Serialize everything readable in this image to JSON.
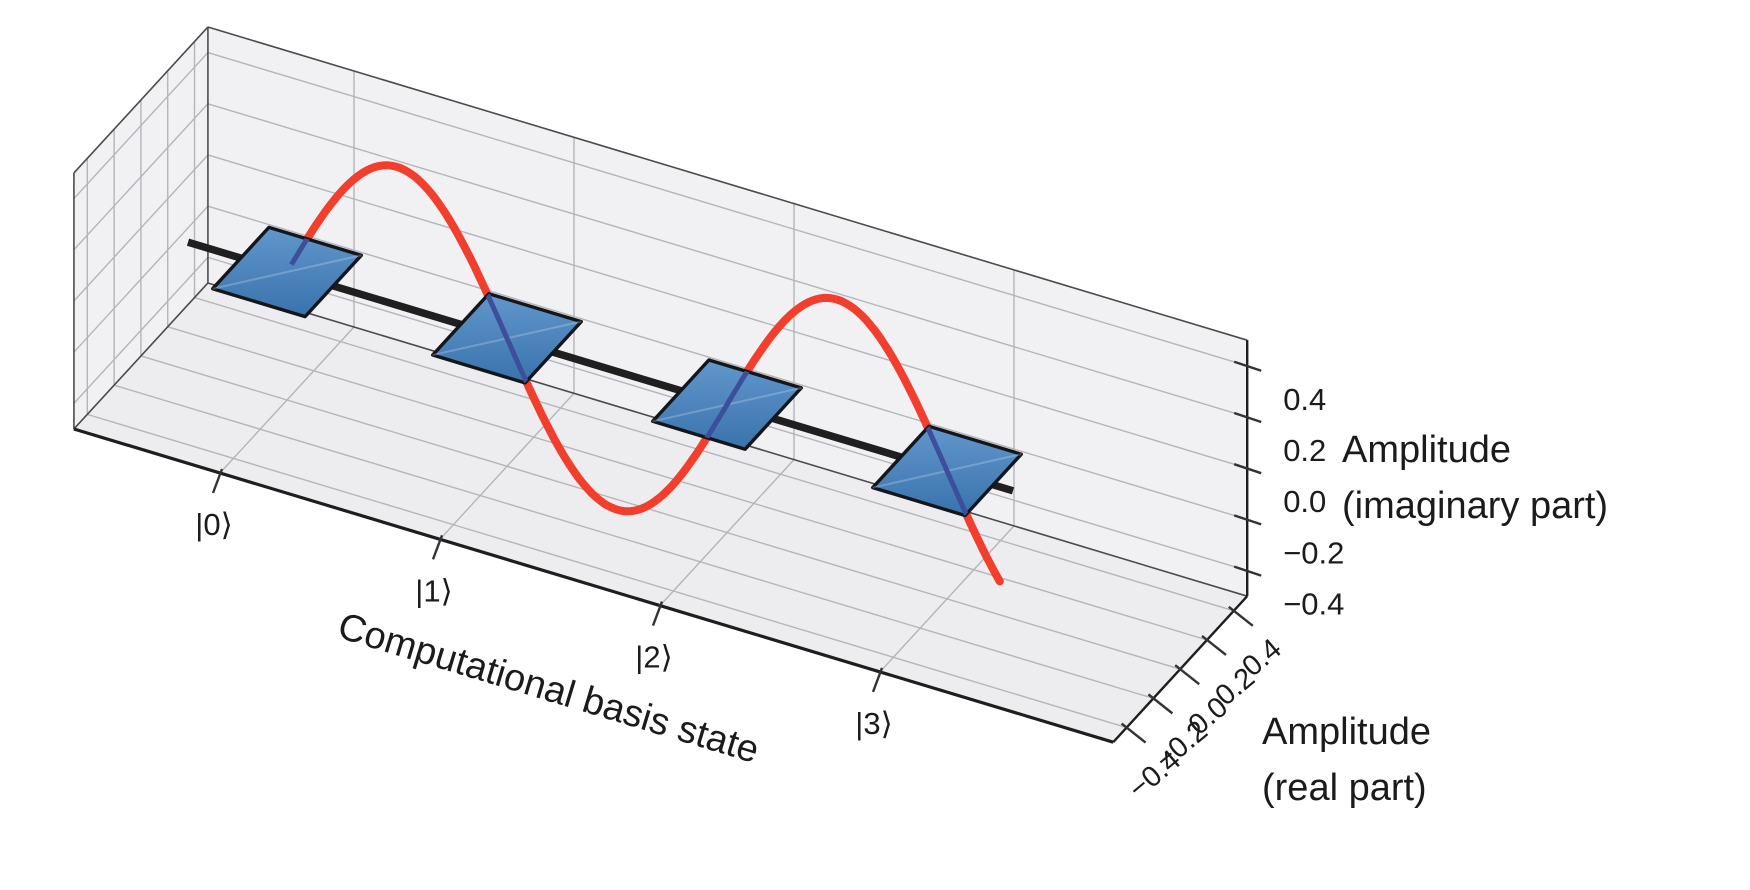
{
  "figure": {
    "kind": "3d quantum state amplitude plot",
    "background": "#ffffff"
  },
  "chart_data": {
    "type": "line",
    "chart_kind": "3d-complex-amplitude-plot",
    "title": "",
    "x_axis": {
      "label": "Computational basis state",
      "tick_labels": [
        "|0⟩",
        "|1⟩",
        "|2⟩",
        "|3⟩"
      ],
      "tick_values": [
        0,
        1,
        2,
        3
      ]
    },
    "real_axis": {
      "label_line1": "Amplitude",
      "label_line2": "(real part)",
      "tick_labels": [
        "0.4",
        "0.2",
        "0.0",
        "−0.2",
        "−0.4"
      ],
      "tick_values": [
        0.4,
        0.2,
        0.0,
        -0.2,
        -0.4
      ],
      "range": [
        -0.5,
        0.5
      ]
    },
    "imag_axis": {
      "label_line1": "Amplitude",
      "label_line2": "(imaginary part)",
      "tick_labels": [
        "0.4",
        "0.2",
        "0.0",
        "−0.2",
        "−0.4"
      ],
      "tick_values": [
        0.4,
        0.2,
        0.0,
        -0.2,
        -0.4
      ],
      "range": [
        -0.5,
        0.5
      ]
    },
    "basis_state_markers": [
      {
        "state": "|0⟩",
        "x": 0,
        "real": 0.0,
        "imag": 0.0
      },
      {
        "state": "|1⟩",
        "x": 1,
        "real": 0.0,
        "imag": 0.0
      },
      {
        "state": "|2⟩",
        "x": 2,
        "real": 0.0,
        "imag": 0.0
      },
      {
        "state": "|3⟩",
        "x": 3,
        "real": 0.0,
        "imag": 0.0
      }
    ],
    "marker_half_size": 0.21,
    "zero_line": {
      "from_x": -0.45,
      "to_x": 3.3,
      "y": 0,
      "z": 0
    },
    "wave": {
      "formula": "amplitude*sin(pi*x)",
      "amplitude": 0.54,
      "x_start": 0.02,
      "x_end": 3.24,
      "y_plane": 0,
      "samples": 170
    },
    "grid": true,
    "legend": "none",
    "colors": {
      "square_fill_top": "#6097cc",
      "square_fill_bottom": "#3a72ac",
      "square_edge": "#14161a",
      "wave": "#f23e2c",
      "wave_occluded": "#3d4e9a",
      "zero_line": "#1f1f1f",
      "pane": "#f1f1f4",
      "floor_pane": "#ededf0",
      "grid_line": "#b4b4bb",
      "box_edge_thin": "#4b4b4b",
      "axis_edge": "#1e1e1e",
      "text": "#1b1b1b"
    }
  }
}
